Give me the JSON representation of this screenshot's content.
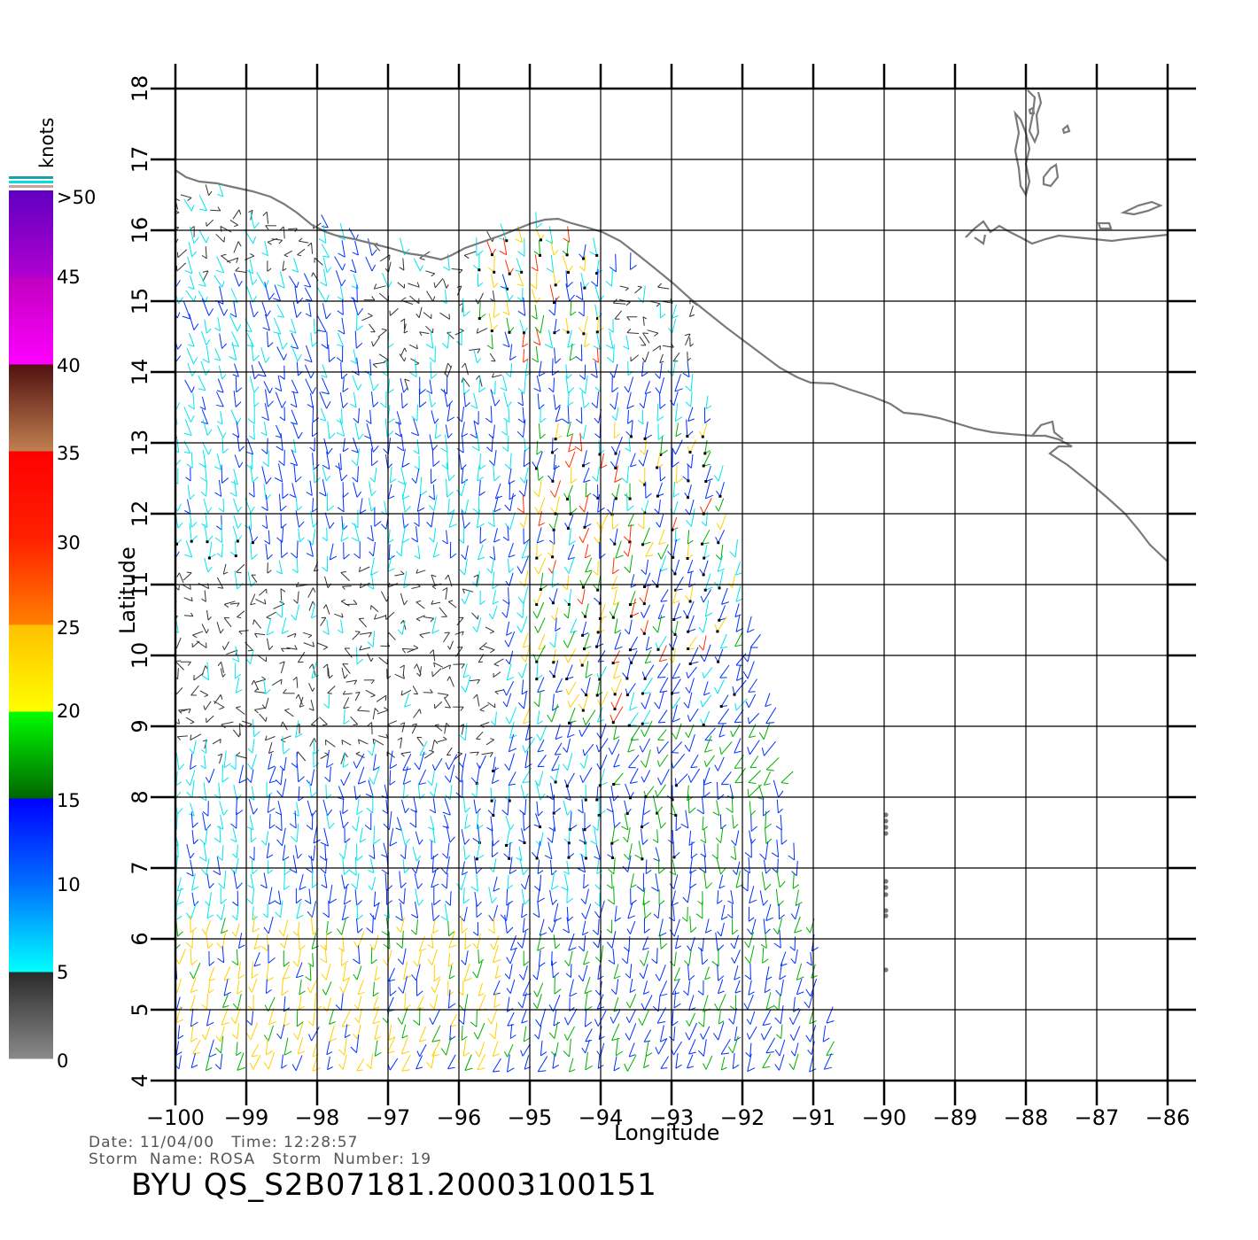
{
  "plot": {
    "ylabel": "Latitude",
    "xlabel": "Longitude",
    "lat_range": [
      4,
      18
    ],
    "lon_range": [
      -100,
      -86
    ],
    "lat_ticks": [
      "4",
      "5",
      "6",
      "7",
      "8",
      "9",
      "10",
      "11",
      "12",
      "13",
      "14",
      "15",
      "16",
      "17",
      "18"
    ],
    "lon_ticks": [
      "−100",
      "−99",
      "−98",
      "−97",
      "−96",
      "−95",
      "−94",
      "−93",
      "−92",
      "−91",
      "−90",
      "−89",
      "−88",
      "−87",
      "−86"
    ]
  },
  "colorbar": {
    "unit": "knots",
    "labels": [
      ">50",
      "45",
      "40",
      "35",
      "30",
      "25",
      "20",
      "15",
      "10",
      "5",
      "0"
    ],
    "bands": [
      {
        "from": 0,
        "to": 5,
        "colors": [
          "#8a8a8a",
          "#2a2a2a"
        ]
      },
      {
        "from": 5,
        "to": 10,
        "colors": [
          "#00ffff",
          "#0070ff"
        ]
      },
      {
        "from": 10,
        "to": 15,
        "colors": [
          "#0070ff",
          "#0000ff"
        ]
      },
      {
        "from": 15,
        "to": 20,
        "colors": [
          "#006400",
          "#00ff00"
        ]
      },
      {
        "from": 20,
        "to": 25,
        "colors": [
          "#ffff00",
          "#ffc000"
        ]
      },
      {
        "from": 25,
        "to": 30,
        "colors": [
          "#ff8000",
          "#ff2000"
        ]
      },
      {
        "from": 30,
        "to": 35,
        "colors": [
          "#ff2000",
          "#ff0000"
        ]
      },
      {
        "from": 35,
        "to": 40,
        "colors": [
          "#c08050",
          "#501010"
        ]
      },
      {
        "from": 40,
        "to": 45,
        "colors": [
          "#ff00ff",
          "#c000c0"
        ]
      },
      {
        "from": 45,
        "to": 50,
        "colors": [
          "#b000d0",
          "#6000c0"
        ]
      }
    ],
    "colors": {
      "gray": "#7a7a7a",
      "cyan": "#00e5ee",
      "blue": "#0030ff",
      "green": "#00b000",
      "yellow": "#ffd000",
      "red": "#ff3000"
    }
  },
  "footer": {
    "date_line": "Date: 11/04/00   Time: 12:28:57",
    "storm_line": "Storm  Name: ROSA   Storm  Number: 19",
    "title": "BYU  QS_S2B07181.20003100151"
  },
  "map_colors": {
    "coast": "#7a7a7a",
    "grid": "#000000"
  }
}
